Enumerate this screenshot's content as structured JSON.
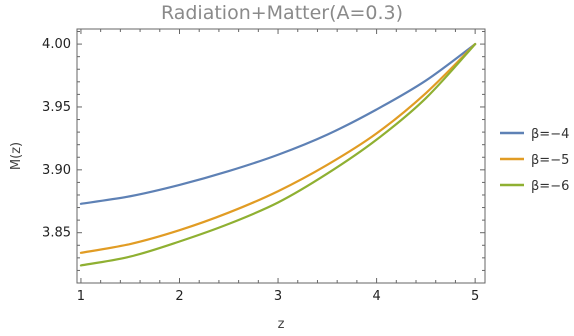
{
  "chart_data": {
    "type": "line",
    "title": "Radiation+Matter(A=0.3)",
    "xlabel": "z",
    "ylabel": "M(z)",
    "xlim": [
      0.96,
      5.1
    ],
    "ylim": [
      3.81,
      4.012
    ],
    "x_ticks": [
      1,
      2,
      3,
      4,
      5
    ],
    "x_tick_labels": [
      "1",
      "2",
      "3",
      "4",
      "5"
    ],
    "y_ticks": [
      3.85,
      3.9,
      3.95,
      4.0
    ],
    "y_tick_labels": [
      "3.85",
      "3.90",
      "3.95",
      "4.00"
    ],
    "legend_position": "right",
    "grid": false,
    "series": [
      {
        "name": "β=−4",
        "color": "#5e81b5",
        "x": [
          1,
          1.5,
          2,
          2.5,
          3,
          3.5,
          4,
          4.5,
          5
        ],
        "y": [
          3.873,
          3.879,
          3.888,
          3.899,
          3.912,
          3.928,
          3.948,
          3.971,
          4.0
        ]
      },
      {
        "name": "β=−5",
        "color": "#e19c24",
        "x": [
          1,
          1.5,
          2,
          2.5,
          3,
          3.5,
          4,
          4.5,
          5
        ],
        "y": [
          3.834,
          3.841,
          3.852,
          3.866,
          3.883,
          3.904,
          3.929,
          3.961,
          4.0
        ]
      },
      {
        "name": "β=−6",
        "color": "#8fb032",
        "x": [
          1,
          1.5,
          2,
          2.5,
          3,
          3.5,
          4,
          4.5,
          5
        ],
        "y": [
          3.824,
          3.831,
          3.843,
          3.857,
          3.874,
          3.897,
          3.924,
          3.957,
          4.0
        ]
      }
    ]
  }
}
